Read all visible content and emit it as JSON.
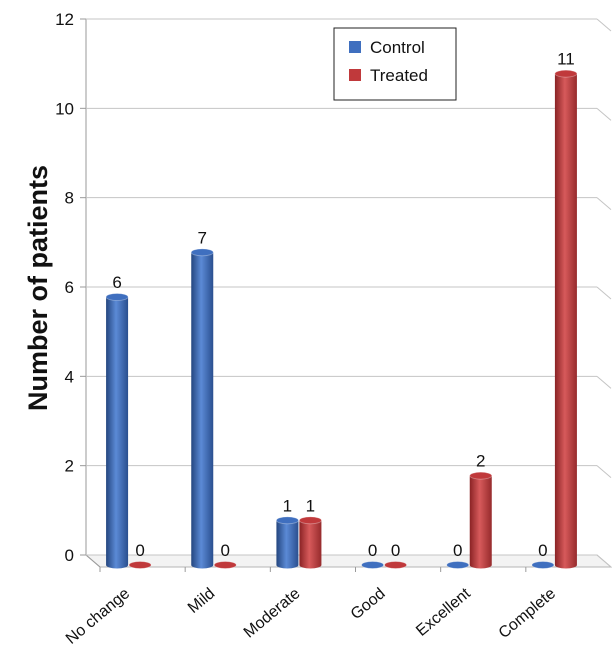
{
  "chart_data": {
    "type": "bar",
    "title": "",
    "xlabel": "",
    "ylabel": "Number of patients",
    "ylim": [
      0,
      12
    ],
    "yticks": [
      0,
      2,
      4,
      6,
      8,
      10,
      12
    ],
    "categories": [
      "No change",
      "Mild",
      "Moderate",
      "Good",
      "Excellent",
      "Complete"
    ],
    "series": [
      {
        "name": "Control",
        "values": [
          6,
          7,
          1,
          0,
          0,
          0
        ],
        "color": "#3f6fbf"
      },
      {
        "name": "Treated",
        "values": [
          0,
          0,
          1,
          0,
          2,
          11
        ],
        "color": "#c0393b"
      }
    ],
    "grid": true,
    "legend": "top-right",
    "style": "3d-cylinder"
  }
}
